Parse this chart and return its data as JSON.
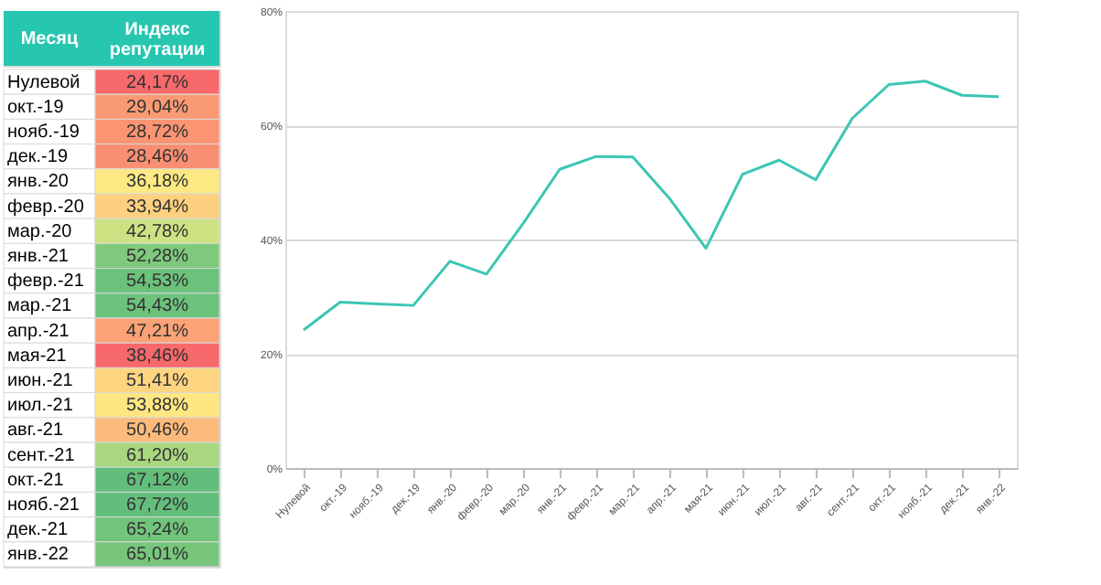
{
  "chart_data": [
    {
      "type": "heatmap",
      "ylabel": "Месяц",
      "categories": [
        "Индекс репутации"
      ],
      "y_categories": [
        "Нулевой",
        "окт.-19",
        "нояб.-19",
        "дек.-19",
        "янв.-20",
        "февр.-20",
        "мар.-20",
        "янв.-21",
        "февр.-21",
        "мар.-21",
        "апр.-21",
        "мая-21",
        "июн.-21",
        "июл.-21",
        "авг.-21",
        "сент.-21",
        "окт.-21",
        "нояб.-21",
        "дек.-21",
        "янв.-22"
      ],
      "cells": [
        [
          24.17
        ],
        [
          29.04
        ],
        [
          28.72
        ],
        [
          28.46
        ],
        [
          36.18
        ],
        [
          33.94
        ],
        [
          42.78
        ],
        [
          52.28
        ],
        [
          54.53
        ],
        [
          54.43
        ],
        [
          47.21
        ],
        [
          38.46
        ],
        [
          51.41
        ],
        [
          53.88
        ],
        [
          50.46
        ],
        [
          61.2
        ],
        [
          67.12
        ],
        [
          67.72
        ],
        [
          65.24
        ],
        [
          65.01
        ]
      ],
      "cell_labels": [
        [
          "24,17%"
        ],
        [
          "29,04%"
        ],
        [
          "28,72%"
        ],
        [
          "28,46%"
        ],
        [
          "36,18%"
        ],
        [
          "33,94%"
        ],
        [
          "42,78%"
        ],
        [
          "52,28%"
        ],
        [
          "54,53%"
        ],
        [
          "54,43%"
        ],
        [
          "47,21%"
        ],
        [
          "38,46%"
        ],
        [
          "51,41%"
        ],
        [
          "53,88%"
        ],
        [
          "50,46%"
        ],
        [
          "61,20%"
        ],
        [
          "67,12%"
        ],
        [
          "67,72%"
        ],
        [
          "65,24%"
        ],
        [
          "65,01%"
        ]
      ],
      "colors": [
        "#f8696b",
        "#fa9a74",
        "#fa9473",
        "#f98f72",
        "#fde983",
        "#fcd07e",
        "#cfe283",
        "#7fc97c",
        "#6cc27b",
        "#6dc37b",
        "#fba276",
        "#f8696b",
        "#fdd480",
        "#fee683",
        "#fcbb7b",
        "#a8d780",
        "#63be7b",
        "#63be7b",
        "#71c47c",
        "#78c67c"
      ]
    },
    {
      "type": "line",
      "categories": [
        "Нулевой",
        "окт.-19",
        "нояб.-19",
        "дек.-19",
        "янв.-20",
        "февр.-20",
        "мар.-20",
        "янв.-21",
        "февр.-21",
        "мар.-21",
        "апр.-21",
        "мая-21",
        "июн.-21",
        "июл.-21",
        "авг.-21",
        "сент.-21",
        "окт.-21",
        "нояб.-21",
        "дек.-21",
        "янв.-22"
      ],
      "values": [
        24.17,
        29.04,
        28.72,
        28.46,
        36.18,
        33.94,
        42.78,
        52.28,
        54.53,
        54.43,
        47.21,
        38.46,
        51.41,
        53.88,
        50.46,
        61.2,
        67.12,
        67.72,
        65.24,
        65.01
      ],
      "color": "#3cc6b4",
      "ylim": [
        0,
        80
      ],
      "yticks": [
        {
          "value": 0,
          "label": "0%"
        },
        {
          "value": 20,
          "label": "20%"
        },
        {
          "value": 40,
          "label": "40%"
        },
        {
          "value": 60,
          "label": "60%"
        },
        {
          "value": 80,
          "label": "80%"
        }
      ],
      "grid": "y",
      "marker": "none",
      "line_style": "solid"
    }
  ]
}
